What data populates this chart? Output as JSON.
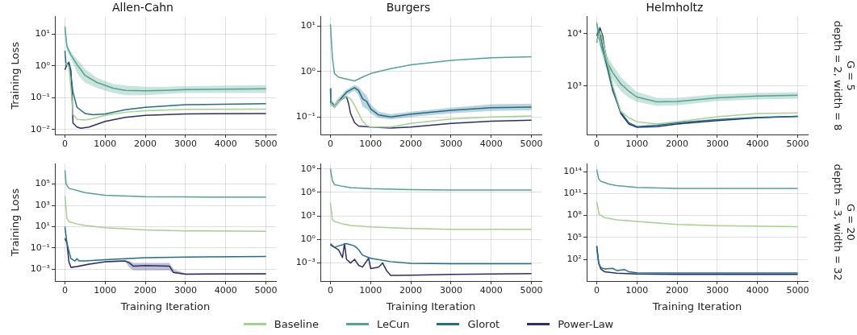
{
  "chart_data": [
    {
      "type": "line",
      "title": "Allen-Cahn",
      "ylabel": "Training Loss",
      "log": "y",
      "grid": true,
      "marker": "none",
      "line_style": "solid",
      "xlim": [
        -250,
        5250
      ],
      "xticks": [
        0,
        1000,
        2000,
        3000,
        4000,
        5000
      ],
      "ylim": [
        0.007,
        35
      ],
      "yticks": [
        {
          "value": 0.01,
          "label": "10⁻²"
        },
        {
          "value": 0.1,
          "label": "10⁻¹"
        },
        {
          "value": 1,
          "label": "10⁰"
        },
        {
          "value": 10,
          "label": "10¹"
        }
      ],
      "series": [
        {
          "color": "#a1d28e",
          "x": [
            0,
            50,
            100,
            150,
            200,
            300,
            500,
            700,
            1000,
            1500,
            2000,
            3000,
            5000
          ],
          "values": [
            1.2,
            1.1,
            0.9,
            0.2,
            0.03,
            0.021,
            0.02,
            0.022,
            0.028,
            0.035,
            0.039,
            0.043,
            0.044
          ]
        },
        {
          "color": "#4fa58f",
          "x": [
            0,
            50,
            150,
            300,
            400,
            500,
            800,
            1200,
            1500,
            2000,
            2500,
            3000,
            4000,
            5000
          ],
          "values": [
            17,
            4,
            2.2,
            1.1,
            0.75,
            0.5,
            0.3,
            0.2,
            0.17,
            0.165,
            0.17,
            0.18,
            0.185,
            0.19
          ],
          "lower": [
            10,
            3,
            1.7,
            0.6,
            0.4,
            0.3,
            0.2,
            0.14,
            0.12,
            0.12,
            0.13,
            0.14,
            0.14,
            0.14
          ],
          "upper": [
            25,
            5,
            2.8,
            1.6,
            1.2,
            0.8,
            0.42,
            0.27,
            0.24,
            0.22,
            0.22,
            0.23,
            0.24,
            0.25
          ]
        },
        {
          "color": "#1f6e8a",
          "x": [
            0,
            30,
            100,
            150,
            200,
            300,
            500,
            700,
            1000,
            1500,
            2000,
            3000,
            5000
          ],
          "values": [
            3,
            1.0,
            1.2,
            0.5,
            0.15,
            0.05,
            0.032,
            0.029,
            0.031,
            0.042,
            0.05,
            0.06,
            0.065
          ]
        },
        {
          "color": "#2a2d6f",
          "x": [
            0,
            50,
            100,
            150,
            180,
            200,
            300,
            400,
            600,
            1000,
            1500,
            2000,
            3000,
            5000
          ],
          "values": [
            0.75,
            1.1,
            1.3,
            0.7,
            0.1,
            0.016,
            0.012,
            0.011,
            0.012,
            0.018,
            0.024,
            0.028,
            0.031,
            0.032
          ]
        }
      ]
    },
    {
      "type": "line",
      "title": "Burgers",
      "log": "y",
      "grid": true,
      "marker": "none",
      "line_style": "solid",
      "xlim": [
        -250,
        5250
      ],
      "xticks": [
        0,
        1000,
        2000,
        3000,
        4000,
        5000
      ],
      "ylim": [
        0.041,
        16
      ],
      "yticks": [
        {
          "value": 0.1,
          "label": "10⁻¹"
        },
        {
          "value": 1,
          "label": "10⁰"
        },
        {
          "value": 10,
          "label": "10¹"
        }
      ],
      "series": [
        {
          "color": "#a1d28e",
          "x": [
            0,
            100,
            200,
            400,
            500,
            600,
            700,
            800,
            900,
            1000,
            1500,
            2000,
            3000,
            4000,
            5000
          ],
          "values": [
            0.2,
            0.17,
            0.22,
            0.28,
            0.25,
            0.18,
            0.12,
            0.08,
            0.065,
            0.06,
            0.06,
            0.072,
            0.09,
            0.1,
            0.105
          ]
        },
        {
          "color": "#4fa58f",
          "x": [
            0,
            50,
            100,
            200,
            400,
            600,
            800,
            1000,
            1500,
            2000,
            3000,
            4000,
            5000
          ],
          "values": [
            11,
            2,
            0.9,
            0.75,
            0.68,
            0.62,
            0.75,
            0.9,
            1.15,
            1.4,
            1.75,
            2.0,
            2.1
          ]
        },
        {
          "color": "#1f6e8a",
          "x": [
            0,
            10,
            50,
            100,
            200,
            400,
            600,
            700,
            800,
            900,
            1000,
            1200,
            1500,
            2000,
            3000,
            4000,
            5000
          ],
          "values": [
            0.42,
            0.2,
            0.2,
            0.17,
            0.22,
            0.35,
            0.44,
            0.38,
            0.25,
            0.22,
            0.15,
            0.11,
            0.1,
            0.115,
            0.14,
            0.16,
            0.165
          ],
          "lower": [
            0.36,
            0.17,
            0.17,
            0.15,
            0.19,
            0.3,
            0.38,
            0.3,
            0.17,
            0.15,
            0.12,
            0.095,
            0.088,
            0.1,
            0.12,
            0.135,
            0.14
          ],
          "upper": [
            0.48,
            0.23,
            0.23,
            0.2,
            0.26,
            0.4,
            0.5,
            0.46,
            0.36,
            0.3,
            0.19,
            0.13,
            0.115,
            0.13,
            0.16,
            0.19,
            0.195
          ]
        },
        {
          "color": "#2a2d6f",
          "x": [
            0,
            100,
            200,
            400,
            450,
            500,
            600,
            700,
            1000,
            1500,
            2000,
            3000,
            4000,
            5000
          ],
          "values": [
            0.2,
            0.17,
            0.22,
            0.28,
            0.2,
            0.12,
            0.075,
            0.063,
            0.06,
            0.057,
            0.06,
            0.072,
            0.08,
            0.085
          ]
        }
      ]
    },
    {
      "type": "line",
      "title": "Helmholtz",
      "log": "y",
      "grid": true,
      "marker": "none",
      "line_style": "solid",
      "xlim": [
        -250,
        5250
      ],
      "xticks": [
        0,
        1000,
        2000,
        3000,
        4000,
        5000
      ],
      "ylim": [
        120,
        21000
      ],
      "yticks": [
        {
          "value": 1000,
          "label": "10³"
        },
        {
          "value": 10000,
          "label": "10⁴"
        }
      ],
      "annotations": [
        "G = 5\ndepth = 2, width = 8"
      ],
      "series": [
        {
          "color": "#a1d28e",
          "x": [
            0,
            50,
            100,
            200,
            400,
            600,
            800,
            1000,
            1500,
            2000,
            3000,
            4000,
            5000
          ],
          "values": [
            7000,
            9000,
            11000,
            5000,
            1000,
            330,
            250,
            210,
            190,
            210,
            260,
            300,
            310
          ]
        },
        {
          "color": "#4fa58f",
          "x": [
            0,
            100,
            200,
            400,
            600,
            800,
            1000,
            1500,
            2000,
            3000,
            4000,
            5000
          ],
          "values": [
            16000,
            6000,
            3500,
            1800,
            1100,
            800,
            620,
            500,
            510,
            600,
            650,
            670
          ],
          "lower": [
            13000,
            4800,
            2600,
            1300,
            800,
            600,
            500,
            420,
            430,
            520,
            560,
            580
          ],
          "upper": [
            19000,
            7500,
            4500,
            2500,
            1500,
            1050,
            780,
            600,
            600,
            700,
            750,
            770
          ]
        },
        {
          "color": "#1f6e8a",
          "x": [
            0,
            50,
            100,
            200,
            400,
            600,
            800,
            1000,
            1500,
            2000,
            3000,
            4000,
            5000
          ],
          "values": [
            9000,
            12000,
            9000,
            3500,
            800,
            320,
            200,
            170,
            180,
            200,
            230,
            255,
            265
          ]
        },
        {
          "color": "#2a2d6f",
          "x": [
            0,
            50,
            80,
            150,
            200,
            400,
            600,
            800,
            1000,
            1500,
            2000,
            3000,
            4000,
            5000
          ],
          "values": [
            6800,
            10000,
            13000,
            9000,
            5000,
            900,
            300,
            190,
            165,
            170,
            190,
            220,
            250,
            265
          ]
        }
      ]
    },
    {
      "type": "line",
      "xlabel": "Training Iteration",
      "ylabel": "Training Loss",
      "log": "y",
      "grid": true,
      "marker": "none",
      "line_style": "solid",
      "xlim": [
        -250,
        5250
      ],
      "xticks": [
        0,
        1000,
        2000,
        3000,
        4000,
        5000
      ],
      "ylim": [
        7.8e-05,
        8700000
      ],
      "yticks": [
        {
          "value": 0.001,
          "label": "10⁻³"
        },
        {
          "value": 0.1,
          "label": "10⁻¹"
        },
        {
          "value": 10,
          "label": "10¹"
        },
        {
          "value": 1000,
          "label": "10³"
        },
        {
          "value": 100000,
          "label": "10⁵"
        }
      ],
      "series": [
        {
          "color": "#a1d28e",
          "x": [
            0,
            50,
            100,
            300,
            500,
            1000,
            2000,
            3000,
            5000
          ],
          "values": [
            8000,
            60,
            30,
            18,
            13,
            8,
            5,
            4,
            3.7
          ]
        },
        {
          "color": "#4fa58f",
          "x": [
            0,
            30,
            100,
            300,
            500,
            1000,
            2000,
            3000,
            5000
          ],
          "values": [
            2000000,
            100000,
            40000,
            25000,
            16000,
            9000,
            6500,
            6200,
            6000
          ]
        },
        {
          "color": "#1f6e8a",
          "x": [
            0,
            50,
            100,
            150,
            250,
            300,
            350,
            500,
            1000,
            2000,
            3000,
            5000
          ],
          "values": [
            10,
            0.3,
            0.05,
            0.01,
            0.006,
            0.01,
            0.006,
            0.006,
            0.008,
            0.012,
            0.014,
            0.016
          ]
        },
        {
          "color": "#2a2d6f",
          "x": [
            0,
            50,
            100,
            150,
            300,
            600,
            1000,
            1500,
            1600,
            1700,
            2000,
            2600,
            2700,
            3000,
            5000
          ],
          "values": [
            0.8,
            0.3,
            0.005,
            0.0015,
            0.0018,
            0.003,
            0.005,
            0.006,
            0.004,
            0.002,
            0.0022,
            0.002,
            0.0005,
            0.00035,
            0.00038
          ],
          "lower": [
            0.6,
            0.2,
            0.004,
            0.0012,
            0.0015,
            0.0025,
            0.0042,
            0.005,
            0.0015,
            0.0008,
            0.0008,
            0.0008,
            0.0004,
            0.0003,
            0.00032
          ],
          "upper": [
            1.0,
            0.4,
            0.006,
            0.0018,
            0.0021,
            0.0035,
            0.006,
            0.007,
            0.006,
            0.004,
            0.004,
            0.004,
            0.001,
            0.0004,
            0.00045
          ]
        }
      ]
    },
    {
      "type": "line",
      "xlabel": "Training Iteration",
      "log": "y",
      "grid": true,
      "legend": "bottom",
      "marker": "none",
      "line_style": "solid",
      "xlim": [
        -250,
        5250
      ],
      "xticks": [
        0,
        1000,
        2000,
        3000,
        4000,
        5000
      ],
      "ylim": [
        5e-06,
        4900000000
      ],
      "yticks": [
        {
          "value": 0.001,
          "label": "10⁻³"
        },
        {
          "value": 1,
          "label": "10⁰"
        },
        {
          "value": 1000,
          "label": "10³"
        },
        {
          "value": 1000000,
          "label": "10⁶"
        },
        {
          "value": 1000000000,
          "label": "10⁹"
        }
      ],
      "series": [
        {
          "name": "Baseline",
          "color": "#a1d28e",
          "x": [
            0,
            50,
            100,
            300,
            500,
            1000,
            2000,
            3000,
            5000
          ],
          "values": [
            50000,
            300,
            200,
            100,
            60,
            40,
            25,
            20,
            20
          ]
        },
        {
          "name": "LeCun",
          "color": "#4fa58f",
          "x": [
            0,
            50,
            100,
            300,
            500,
            1000,
            2000,
            3000,
            5000
          ],
          "values": [
            1000000000,
            30000000,
            10000000,
            6000000,
            4000000,
            3000000,
            2200000,
            2000000,
            2000000
          ]
        },
        {
          "name": "Glorot",
          "color": "#1f6e8a",
          "x": [
            0,
            100,
            200,
            400,
            600,
            700,
            800,
            1000,
            1500,
            2000,
            3000,
            5000
          ],
          "values": [
            0.3,
            0.1,
            0.15,
            0.3,
            0.15,
            0.05,
            0.01,
            0.004,
            0.0015,
            0.0009,
            0.0008,
            0.0008
          ]
        },
        {
          "name": "Power-Law",
          "color": "#2a2d6f",
          "x": [
            0,
            100,
            200,
            300,
            350,
            400,
            500,
            600,
            700,
            800,
            950,
            1000,
            1200,
            1300,
            1400,
            1500,
            2000,
            3000,
            5000
          ],
          "values": [
            0.2,
            0.1,
            0.05,
            0.005,
            0.3,
            0.003,
            0.001,
            0.003,
            0.0005,
            0.0003,
            0.004,
            0.0002,
            0.0003,
            0.001,
            0.0001,
            2.6e-05,
            2.8e-05,
            3.5e-05,
            4.5e-05
          ]
        }
      ]
    },
    {
      "type": "line",
      "xlabel": "Training Iteration",
      "log": "y",
      "grid": true,
      "marker": "none",
      "line_style": "solid",
      "xlim": [
        -250,
        5250
      ],
      "xticks": [
        0,
        1000,
        2000,
        3000,
        4000,
        5000
      ],
      "ylim": [
        0.11,
        1300000000000000
      ],
      "yticks": [
        {
          "value": 100,
          "label": "10²"
        },
        {
          "value": 100000,
          "label": "10⁵"
        },
        {
          "value": 100000000,
          "label": "10⁸"
        },
        {
          "value": 100000000000,
          "label": "10¹¹"
        },
        {
          "value": 100000000000000,
          "label": "10¹⁴"
        }
      ],
      "annotations": [
        "G = 20\ndepth = 3, width = 32"
      ],
      "series": [
        {
          "color": "#a1d28e",
          "x": [
            0,
            60,
            200,
            500,
            1000,
            2000,
            3000,
            5000
          ],
          "values": [
            8000000000,
            150000000,
            50000000,
            25000000,
            15000000,
            6000000,
            4000000,
            3000000
          ]
        },
        {
          "color": "#4fa58f",
          "x": [
            0,
            50,
            100,
            300,
            500,
            1000,
            2000,
            5000
          ],
          "values": [
            200000000000000,
            10000000000000,
            5000000000000,
            2000000000000,
            1200000000000,
            700000000000,
            500000000000,
            500000000000
          ]
        },
        {
          "color": "#1f6e8a",
          "x": [
            0,
            50,
            100,
            200,
            400,
            500,
            700,
            800,
            1000,
            2000,
            5000
          ],
          "values": [
            5000,
            30,
            8,
            5,
            6,
            3,
            4,
            2,
            1.5,
            1.4,
            1.4
          ]
        },
        {
          "color": "#2a2d6f",
          "x": [
            0,
            50,
            100,
            200,
            500,
            1000,
            2000,
            5000
          ],
          "values": [
            7000,
            30,
            5,
            2,
            1.3,
            1,
            0.9,
            0.9
          ]
        }
      ]
    }
  ]
}
